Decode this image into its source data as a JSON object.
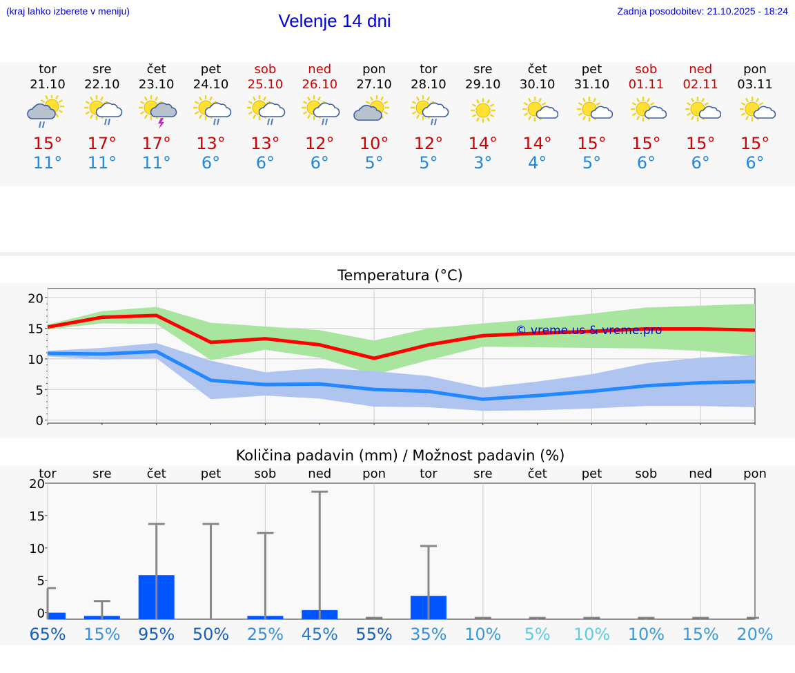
{
  "header": {
    "hint": "(kraj lahko izberete v meniju)",
    "title": "Velenje 14 dni",
    "updated": "Zadnja posodobitev: 21.10.2025 - 18:24"
  },
  "days": [
    {
      "name": "tor",
      "date": "21.10",
      "weekend": false,
      "icon": "partly-cloudy-rain-icon",
      "tmax": "15°",
      "tmin": "11°"
    },
    {
      "name": "sre",
      "date": "22.10",
      "weekend": false,
      "icon": "sun-cloud-rain-icon",
      "tmax": "17°",
      "tmin": "11°"
    },
    {
      "name": "čet",
      "date": "23.10",
      "weekend": false,
      "icon": "sun-cloud-thunder-icon",
      "tmax": "17°",
      "tmin": "11°"
    },
    {
      "name": "pet",
      "date": "24.10",
      "weekend": false,
      "icon": "sun-cloud-rain-icon",
      "tmax": "13°",
      "tmin": "6°"
    },
    {
      "name": "sob",
      "date": "25.10",
      "weekend": true,
      "icon": "sun-cloud-rain-icon",
      "tmax": "13°",
      "tmin": "6°"
    },
    {
      "name": "ned",
      "date": "26.10",
      "weekend": true,
      "icon": "sun-cloud-rain-icon",
      "tmax": "12°",
      "tmin": "6°"
    },
    {
      "name": "pon",
      "date": "27.10",
      "weekend": false,
      "icon": "partly-cloudy-icon",
      "tmax": "10°",
      "tmin": "5°"
    },
    {
      "name": "tor",
      "date": "28.10",
      "weekend": false,
      "icon": "sun-cloud-rain-icon",
      "tmax": "12°",
      "tmin": "5°"
    },
    {
      "name": "sre",
      "date": "29.10",
      "weekend": false,
      "icon": "sunny-icon",
      "tmax": "14°",
      "tmin": "3°"
    },
    {
      "name": "čet",
      "date": "30.10",
      "weekend": false,
      "icon": "sun-small-cloud-icon",
      "tmax": "14°",
      "tmin": "4°"
    },
    {
      "name": "pet",
      "date": "31.10",
      "weekend": false,
      "icon": "sun-small-cloud-icon",
      "tmax": "15°",
      "tmin": "5°"
    },
    {
      "name": "sob",
      "date": "01.11",
      "weekend": true,
      "icon": "sun-small-cloud-icon",
      "tmax": "15°",
      "tmin": "6°"
    },
    {
      "name": "ned",
      "date": "02.11",
      "weekend": true,
      "icon": "sun-small-cloud-icon",
      "tmax": "15°",
      "tmin": "6°"
    },
    {
      "name": "pon",
      "date": "03.11",
      "weekend": false,
      "icon": "sun-small-cloud-icon",
      "tmax": "15°",
      "tmin": "6°"
    }
  ],
  "chart_data": [
    {
      "type": "line",
      "title": "Temperatura (°C)",
      "ylim": [
        -0.5,
        21.5
      ],
      "yticks": [
        0,
        5,
        10,
        15,
        20
      ],
      "xlim": [
        0,
        13
      ],
      "watermark": "© vreme.us & vreme.pro",
      "series": [
        {
          "name": "max",
          "color": "#ff0000",
          "x": [
            0,
            1,
            2,
            3,
            4,
            5,
            6,
            7,
            8,
            9,
            10,
            11,
            12,
            13
          ],
          "values": [
            15.2,
            16.8,
            17.1,
            12.7,
            13.3,
            12.3,
            10.1,
            12.3,
            13.8,
            14.2,
            14.5,
            14.9,
            14.9,
            14.7
          ],
          "band_low": [
            14.8,
            15.8,
            15.7,
            9.8,
            11.5,
            10.2,
            7.4,
            9.8,
            12.0,
            11.9,
            11.8,
            11.7,
            11.3,
            10.5
          ],
          "band_high": [
            15.6,
            17.8,
            18.5,
            15.9,
            15.3,
            14.7,
            13.0,
            15.0,
            15.8,
            16.5,
            17.4,
            18.4,
            18.7,
            19.0
          ],
          "band_color": "#a8e6a0"
        },
        {
          "name": "min",
          "color": "#2288ff",
          "x": [
            0,
            1,
            2,
            3,
            4,
            5,
            6,
            7,
            8,
            9,
            10,
            11,
            12,
            13
          ],
          "values": [
            10.9,
            10.8,
            11.2,
            6.5,
            5.8,
            5.9,
            5.0,
            4.7,
            3.4,
            4.0,
            4.7,
            5.6,
            6.1,
            6.3
          ],
          "band_low": [
            10.4,
            9.9,
            10.1,
            3.4,
            4.0,
            3.5,
            2.2,
            2.1,
            1.5,
            1.6,
            1.9,
            2.3,
            2.3,
            2.1
          ],
          "band_high": [
            11.3,
            11.8,
            12.6,
            9.7,
            7.8,
            8.5,
            8.0,
            7.2,
            5.3,
            6.3,
            7.5,
            9.3,
            10.2,
            10.6
          ],
          "band_color": "#b0c4f0"
        }
      ]
    },
    {
      "type": "bar",
      "title": "Količina padavin (mm) / Možnost padavin (%)",
      "ylim": [
        -1,
        20
      ],
      "yticks": [
        0,
        5,
        10,
        15,
        20
      ],
      "categories": [
        "tor",
        "sre",
        "čet",
        "pet",
        "sob",
        "ned",
        "pon",
        "tor",
        "sre",
        "čet",
        "pet",
        "sob",
        "ned",
        "pon"
      ],
      "values": [
        0.0,
        -0.5,
        5.8,
        -1,
        -0.5,
        0.4,
        -1,
        2.6,
        -1,
        -1,
        -1,
        -1,
        -1,
        -1
      ],
      "error_high": [
        3.8,
        1.8,
        13.7,
        13.7,
        12.3,
        18.7,
        -1,
        10.3,
        -1,
        -1,
        -1,
        -1,
        -1,
        -1
      ],
      "chances": [
        "65%",
        "15%",
        "95%",
        "50%",
        "25%",
        "45%",
        "55%",
        "35%",
        "10%",
        "5%",
        "10%",
        "10%",
        "15%",
        "20%"
      ],
      "chance_colors": [
        "#1560bd",
        "#3a8fd8",
        "#1560bd",
        "#1560bd",
        "#3a8fd8",
        "#2a78c8",
        "#1560bd",
        "#3a8fd8",
        "#3a9ad8",
        "#5ccde0",
        "#5ccde0",
        "#3a9ad8",
        "#3a9ad8",
        "#3a9ad8"
      ]
    }
  ]
}
